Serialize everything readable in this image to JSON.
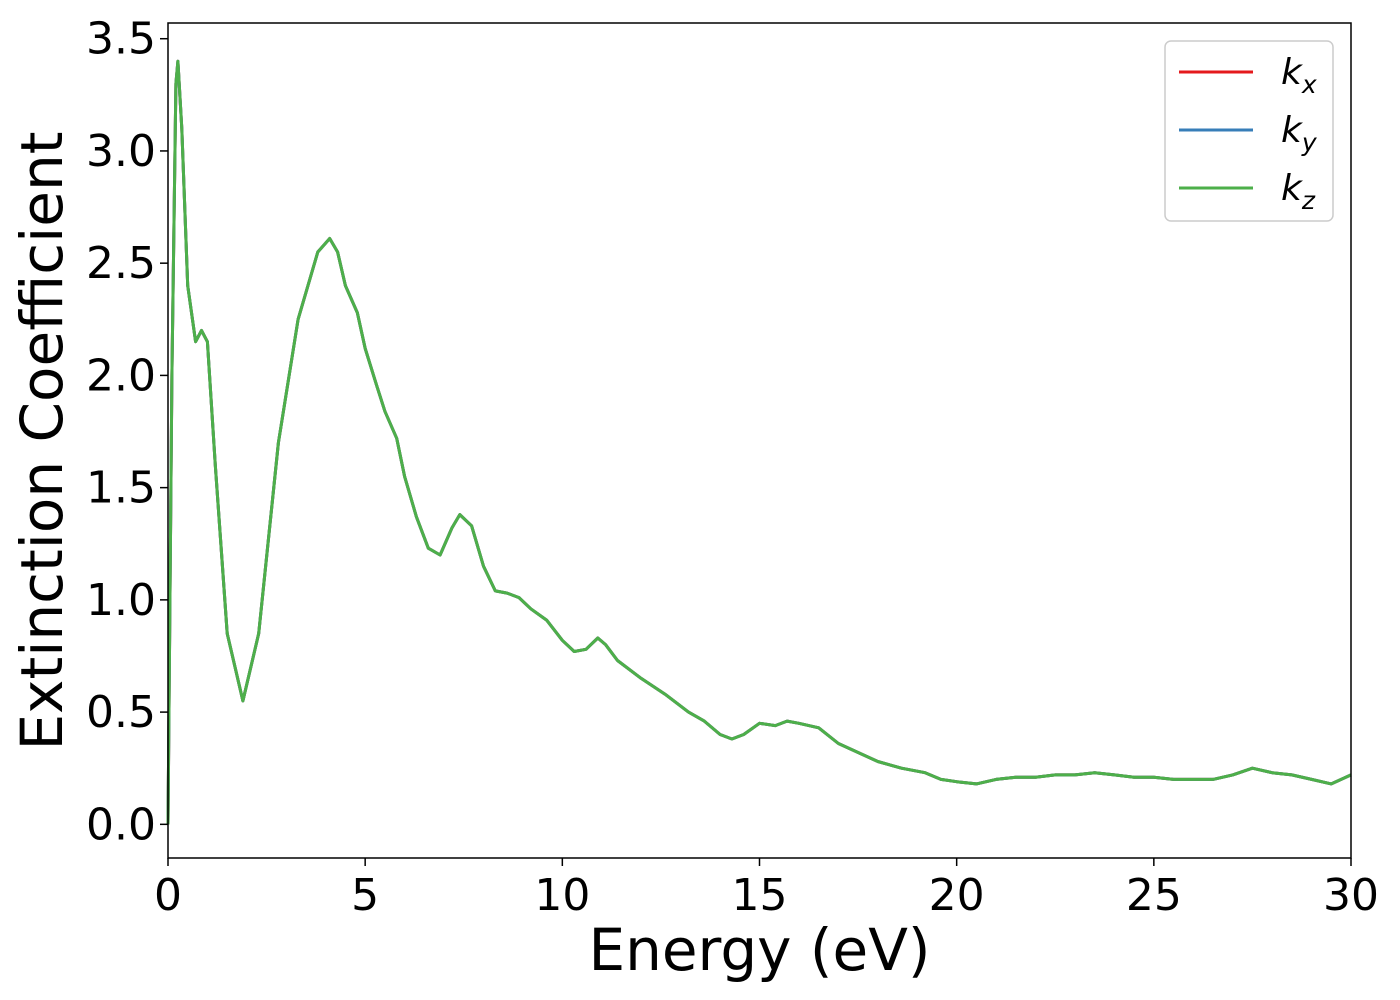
{
  "chart_data": {
    "type": "line",
    "xlabel": "Energy (eV)",
    "ylabel": "Extinction Coefficient",
    "xlim": [
      0,
      30
    ],
    "ylim": [
      -0.15,
      3.57
    ],
    "xticks": [
      0,
      5,
      10,
      15,
      20,
      25,
      30
    ],
    "xtick_labels": [
      "0",
      "5",
      "10",
      "15",
      "20",
      "25",
      "30"
    ],
    "yticks": [
      0.0,
      0.5,
      1.0,
      1.5,
      2.0,
      2.5,
      3.0,
      3.5
    ],
    "ytick_labels": [
      "0.0",
      "0.5",
      "1.0",
      "1.5",
      "2.0",
      "2.5",
      "3.0",
      "3.5"
    ],
    "grid": false,
    "legend": {
      "position": "top-right"
    },
    "x": [
      0,
      0.1,
      0.2,
      0.25,
      0.35,
      0.5,
      0.7,
      0.85,
      1.0,
      1.2,
      1.5,
      1.9,
      2.3,
      2.8,
      3.3,
      3.8,
      4.1,
      4.3,
      4.5,
      4.8,
      5.0,
      5.3,
      5.5,
      5.8,
      6.0,
      6.3,
      6.6,
      6.9,
      7.2,
      7.4,
      7.7,
      8.0,
      8.3,
      8.6,
      8.9,
      9.2,
      9.6,
      10.0,
      10.3,
      10.6,
      10.9,
      11.1,
      11.4,
      12.0,
      12.6,
      13.2,
      13.6,
      14.0,
      14.3,
      14.6,
      15.0,
      15.4,
      15.7,
      16.0,
      16.5,
      17.0,
      17.5,
      18.0,
      18.6,
      19.2,
      19.6,
      20.0,
      20.5,
      21.0,
      21.5,
      22.0,
      22.5,
      23.0,
      23.5,
      24.0,
      24.5,
      25.0,
      25.5,
      26.0,
      26.5,
      27.0,
      27.5,
      28.0,
      28.5,
      29.0,
      29.5,
      30.0
    ],
    "series": [
      {
        "name": "kx",
        "label_base": "k",
        "label_sub": "x",
        "color": "#e41a1c",
        "values": [
          0.0,
          2.0,
          3.3,
          3.4,
          3.1,
          2.4,
          2.15,
          2.2,
          2.15,
          1.6,
          0.85,
          0.55,
          0.85,
          1.7,
          2.25,
          2.55,
          2.61,
          2.55,
          2.4,
          2.28,
          2.12,
          1.95,
          1.84,
          1.72,
          1.55,
          1.37,
          1.23,
          1.2,
          1.32,
          1.38,
          1.33,
          1.15,
          1.04,
          1.03,
          1.01,
          0.96,
          0.91,
          0.82,
          0.77,
          0.78,
          0.83,
          0.8,
          0.73,
          0.65,
          0.58,
          0.5,
          0.46,
          0.4,
          0.38,
          0.4,
          0.45,
          0.44,
          0.46,
          0.45,
          0.43,
          0.36,
          0.32,
          0.28,
          0.25,
          0.23,
          0.2,
          0.19,
          0.18,
          0.2,
          0.21,
          0.21,
          0.22,
          0.22,
          0.23,
          0.22,
          0.21,
          0.21,
          0.2,
          0.2,
          0.2,
          0.22,
          0.25,
          0.23,
          0.22,
          0.2,
          0.18,
          0.22
        ]
      },
      {
        "name": "ky",
        "label_base": "k",
        "label_sub": "y",
        "color": "#377eb8",
        "values": [
          0.0,
          2.0,
          3.3,
          3.4,
          3.1,
          2.4,
          2.15,
          2.2,
          2.15,
          1.6,
          0.85,
          0.55,
          0.85,
          1.7,
          2.25,
          2.55,
          2.61,
          2.55,
          2.4,
          2.28,
          2.12,
          1.95,
          1.84,
          1.72,
          1.55,
          1.37,
          1.23,
          1.2,
          1.32,
          1.38,
          1.33,
          1.15,
          1.04,
          1.03,
          1.01,
          0.96,
          0.91,
          0.82,
          0.77,
          0.78,
          0.83,
          0.8,
          0.73,
          0.65,
          0.58,
          0.5,
          0.46,
          0.4,
          0.38,
          0.4,
          0.45,
          0.44,
          0.46,
          0.45,
          0.43,
          0.36,
          0.32,
          0.28,
          0.25,
          0.23,
          0.2,
          0.19,
          0.18,
          0.2,
          0.21,
          0.21,
          0.22,
          0.22,
          0.23,
          0.22,
          0.21,
          0.21,
          0.2,
          0.2,
          0.2,
          0.22,
          0.25,
          0.23,
          0.22,
          0.2,
          0.18,
          0.22
        ]
      },
      {
        "name": "kz",
        "label_base": "k",
        "label_sub": "z",
        "color": "#4daf4a",
        "values": [
          0.0,
          2.0,
          3.3,
          3.4,
          3.1,
          2.4,
          2.15,
          2.2,
          2.15,
          1.6,
          0.85,
          0.55,
          0.85,
          1.7,
          2.25,
          2.55,
          2.61,
          2.55,
          2.4,
          2.28,
          2.12,
          1.95,
          1.84,
          1.72,
          1.55,
          1.37,
          1.23,
          1.2,
          1.32,
          1.38,
          1.33,
          1.15,
          1.04,
          1.03,
          1.01,
          0.96,
          0.91,
          0.82,
          0.77,
          0.78,
          0.83,
          0.8,
          0.73,
          0.65,
          0.58,
          0.5,
          0.46,
          0.4,
          0.38,
          0.4,
          0.45,
          0.44,
          0.46,
          0.45,
          0.43,
          0.36,
          0.32,
          0.28,
          0.25,
          0.23,
          0.2,
          0.19,
          0.18,
          0.2,
          0.21,
          0.21,
          0.22,
          0.22,
          0.23,
          0.22,
          0.21,
          0.21,
          0.2,
          0.2,
          0.2,
          0.22,
          0.25,
          0.23,
          0.22,
          0.2,
          0.18,
          0.22
        ]
      }
    ]
  }
}
